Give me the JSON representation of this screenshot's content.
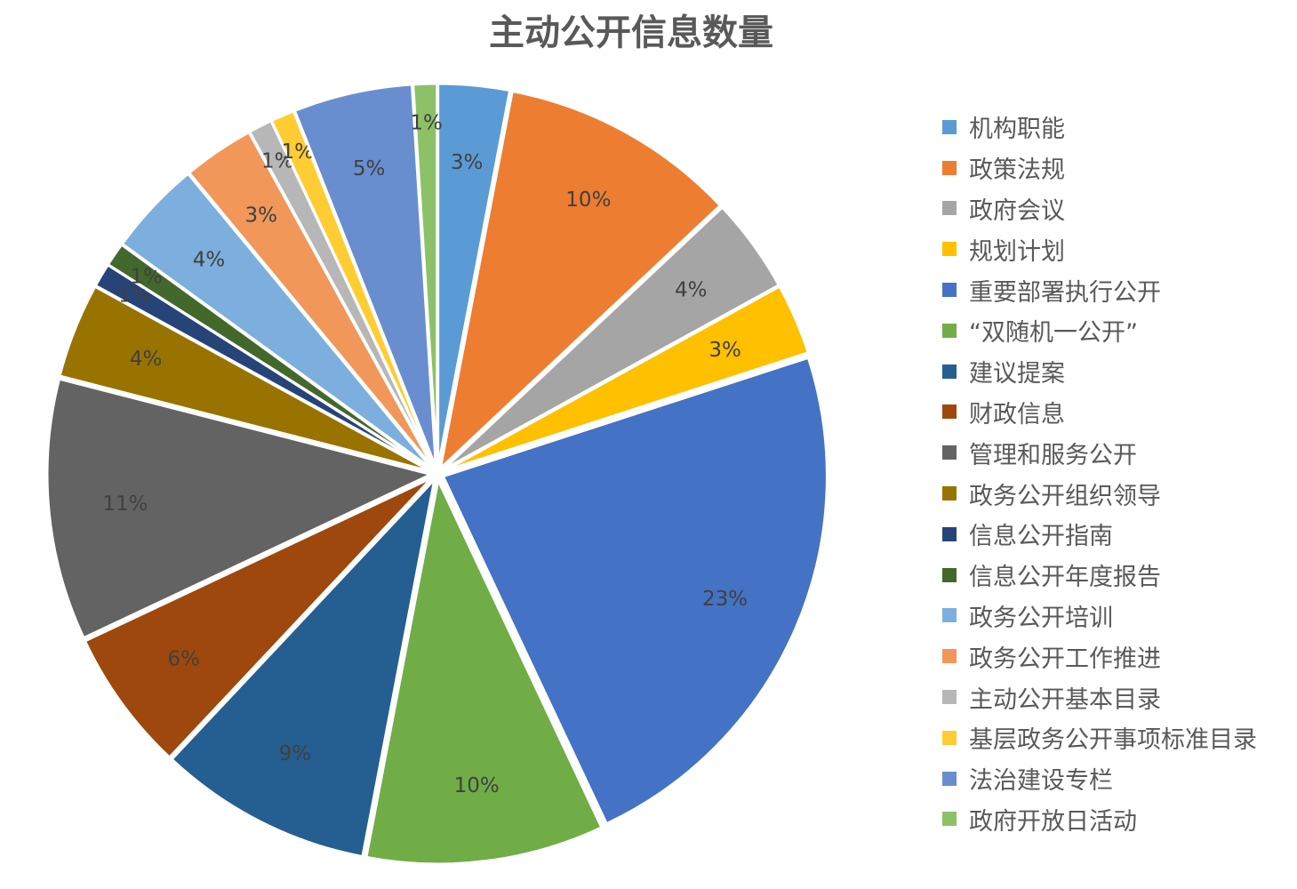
{
  "chart_data": {
    "type": "pie",
    "title": "主动公开信息数量",
    "start": "12 o'clock, clockwise",
    "exploded": true,
    "legend_position": "right",
    "slices": [
      {
        "label": "机构职能",
        "value": 3,
        "display": "3%",
        "color": "#5B9BD5"
      },
      {
        "label": "政策法规",
        "value": 10,
        "display": "10%",
        "color": "#ED7D31"
      },
      {
        "label": "政府会议",
        "value": 4,
        "display": "4%",
        "color": "#A5A5A5"
      },
      {
        "label": "规划计划",
        "value": 3,
        "display": "3%",
        "color": "#FFC000"
      },
      {
        "label": "重要部署执行公开",
        "value": 23,
        "display": "23%",
        "color": "#4472C4"
      },
      {
        "label": "“双随机一公开”",
        "value": 10,
        "display": "10%",
        "color": "#70AD47"
      },
      {
        "label": "建议提案",
        "value": 9,
        "display": "9%",
        "color": "#255E91"
      },
      {
        "label": "财政信息",
        "value": 6,
        "display": "6%",
        "color": "#9E480E"
      },
      {
        "label": "管理和服务公开",
        "value": 11,
        "display": "11%",
        "color": "#636363"
      },
      {
        "label": "政务公开组织领导",
        "value": 4,
        "display": "4%",
        "color": "#997300"
      },
      {
        "label": "信息公开指南",
        "value": 1,
        "display": "1%",
        "color": "#264478"
      },
      {
        "label": "信息公开年度报告",
        "value": 1,
        "display": "1%",
        "color": "#43682B"
      },
      {
        "label": "政务公开培训",
        "value": 4,
        "display": "4%",
        "color": "#7CAFDD"
      },
      {
        "label": "政务公开工作推进",
        "value": 3,
        "display": "3%",
        "color": "#F1975A"
      },
      {
        "label": "主动公开基本目录",
        "value": 1,
        "display": "1%",
        "color": "#B7B7B7"
      },
      {
        "label": "基层政务公开事项标准目录",
        "value": 1,
        "display": "1%",
        "color": "#FFCD33"
      },
      {
        "label": "法治建设专栏",
        "value": 5,
        "display": "5%",
        "color": "#698ED0"
      },
      {
        "label": "政府开放日活动",
        "value": 1,
        "display": "1%",
        "color": "#8CC168"
      }
    ]
  }
}
